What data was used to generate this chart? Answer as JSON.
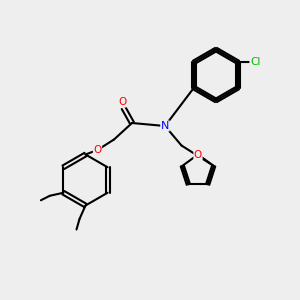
{
  "bg_color": "#eeeeee",
  "bond_color": "#000000",
  "bond_lw": 1.5,
  "atom_colors": {
    "O": "#ff0000",
    "N": "#0000ff",
    "Cl": "#00bb00",
    "C": "#000000"
  },
  "font_size": 7.5,
  "fig_size": [
    3.0,
    3.0
  ],
  "dpi": 100
}
